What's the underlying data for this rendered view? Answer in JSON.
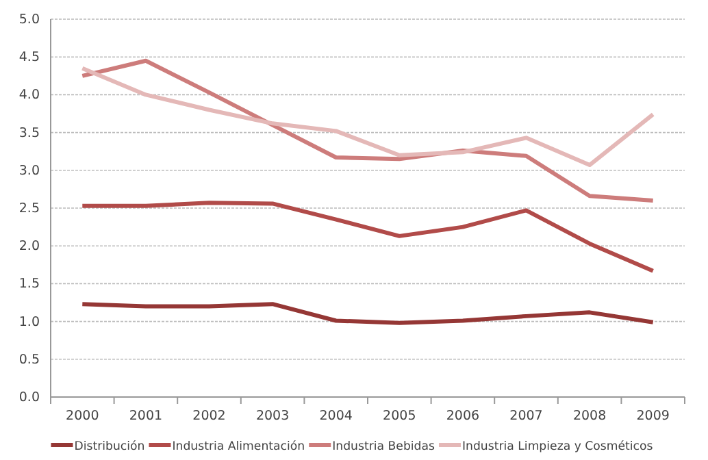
{
  "chart_data": {
    "type": "line",
    "categories": [
      "2000",
      "2001",
      "2002",
      "2003",
      "2004",
      "2005",
      "2006",
      "2007",
      "2008",
      "2009"
    ],
    "series": [
      {
        "name": "Distribución",
        "color": "#953735",
        "values": [
          1.23,
          1.2,
          1.2,
          1.23,
          1.01,
          0.98,
          1.01,
          1.07,
          1.12,
          0.99
        ]
      },
      {
        "name": "Industria Alimentación",
        "color": "#b14b49",
        "values": [
          2.53,
          2.53,
          2.57,
          2.56,
          2.35,
          2.13,
          2.25,
          2.47,
          2.03,
          1.67
        ]
      },
      {
        "name": "Industria Bebidas",
        "color": "#cd7c7b",
        "values": [
          4.25,
          4.45,
          4.03,
          3.6,
          3.17,
          3.15,
          3.26,
          3.19,
          2.66,
          2.6
        ]
      },
      {
        "name": "Industria Limpieza y Cosméticos",
        "color": "#e4b8b7",
        "values": [
          4.35,
          4.0,
          3.8,
          3.62,
          3.52,
          3.2,
          3.24,
          3.43,
          3.07,
          3.74
        ]
      }
    ],
    "ylim": [
      0,
      5
    ],
    "yticks": [
      {
        "value": 0,
        "label": "0.0"
      },
      {
        "value": 0.5,
        "label": "0.5"
      },
      {
        "value": 1,
        "label": "1.0"
      },
      {
        "value": 1.5,
        "label": "1.5"
      },
      {
        "value": 2,
        "label": "2.0"
      },
      {
        "value": 2.5,
        "label": "2.5"
      },
      {
        "value": 3,
        "label": "3.0"
      },
      {
        "value": 3.5,
        "label": "3.5"
      },
      {
        "value": 4,
        "label": "4.0"
      },
      {
        "value": 4.5,
        "label": "4.5"
      },
      {
        "value": 5,
        "label": "5.0"
      }
    ],
    "grid": "y",
    "legend": "bottom",
    "marker": "none",
    "line_style": "solid"
  }
}
